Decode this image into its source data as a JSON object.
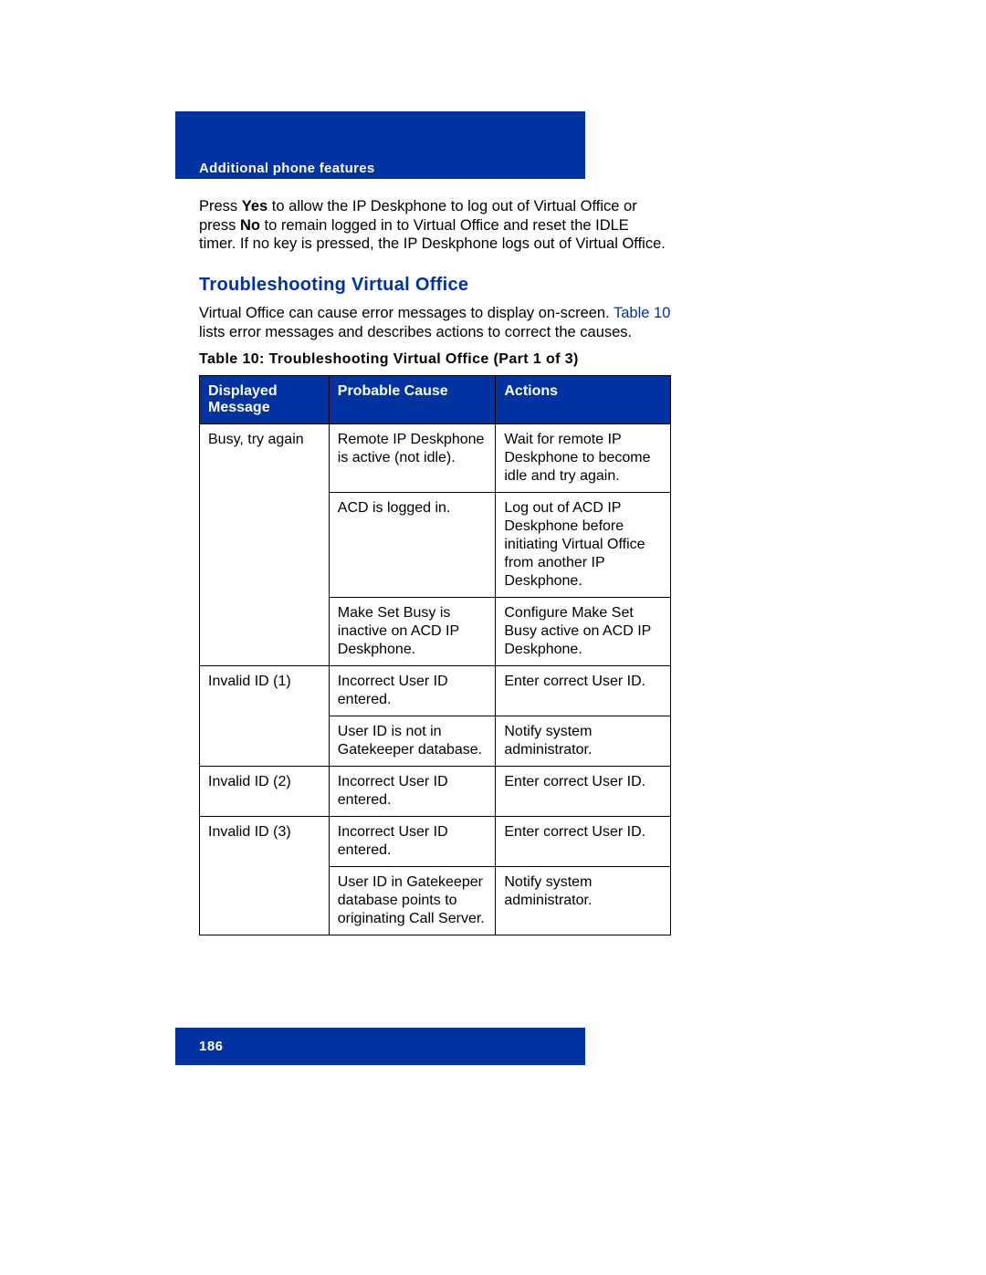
{
  "colors": {
    "brand_blue": "#0033a1",
    "text_black": "#000000",
    "white": "#ffffff"
  },
  "header": {
    "section_label": "Additional phone features"
  },
  "intro": {
    "press_text": "Press ",
    "yes": "Yes",
    "after_yes": " to allow the IP Deskphone to log out of Virtual Office or press ",
    "no": "No",
    "after_no": " to remain logged in to Virtual Office and reset the IDLE timer. If no key is pressed, the IP Deskphone logs out of Virtual Office."
  },
  "section": {
    "heading": "Troubleshooting Virtual Office",
    "para_before_link": "Virtual Office can cause error messages to display on-screen. ",
    "link": "Table 10",
    "para_after_link": " lists error messages and describes actions to correct the causes."
  },
  "table": {
    "caption": "Table 10: Troubleshooting Virtual Office (Part 1 of 3)",
    "headers": {
      "c1": "Displayed Message",
      "c2": "Probable Cause",
      "c3": "Actions"
    },
    "rows": [
      {
        "c1": "Busy, try again",
        "c2": "Remote IP Deskphone is active (not idle).",
        "c3": "Wait for remote IP Deskphone to become idle and try again."
      },
      {
        "c1": "",
        "c2": "ACD is logged in.",
        "c3": "Log out of ACD IP Deskphone before initiating Virtual Office from another IP Deskphone."
      },
      {
        "c1": "",
        "c2": "Make Set Busy is inactive on ACD IP Deskphone.",
        "c3": "Configure Make Set Busy active on ACD IP Deskphone."
      },
      {
        "c1": "Invalid ID (1)",
        "c2": "Incorrect User ID entered.",
        "c3": "Enter correct User ID."
      },
      {
        "c1": "",
        "c2": "User ID is not in Gatekeeper database.",
        "c3": "Notify system administrator."
      },
      {
        "c1": "Invalid ID (2)",
        "c2": "Incorrect User ID entered.",
        "c3": "Enter correct User ID."
      },
      {
        "c1": "Invalid ID (3)",
        "c2": "Incorrect User ID entered.",
        "c3": "Enter correct User ID."
      },
      {
        "c1": "",
        "c2": "User ID in Gatekeeper database points to originating Call Server.",
        "c3": "Notify system administrator."
      }
    ]
  },
  "footer": {
    "page_number": "186"
  }
}
